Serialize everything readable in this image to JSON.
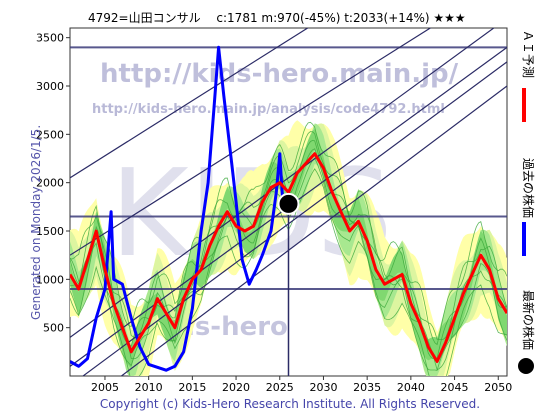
{
  "header": {
    "title": "4792=山田コンサル　 c:1781  m:970(-45%)  t:2033(+14%)  ★★★"
  },
  "side_note": "Generated on Monday 2026/1/5.",
  "footer": "Copyright (c) Kids-Hero Research Institute. All Rights Reserved.",
  "watermark": {
    "big_text": "KIDS",
    "url": "http://kids-hero.main.jp/",
    "analysis_url": "http://kids-hero.main.jp/analysis/code4792.html",
    "lower_text": "kids-hero"
  },
  "legend": [
    {
      "label": "ＡＩ予測",
      "color": "#ff0000"
    },
    {
      "label": "過去の株価",
      "color": "#0000ff"
    },
    {
      "label": "最新の株価",
      "color": "#000000"
    }
  ],
  "chart_data": {
    "type": "line",
    "xlim": [
      2001,
      2051
    ],
    "ylim": [
      0,
      3600
    ],
    "x_ticks": [
      2005,
      2010,
      2015,
      2020,
      2025,
      2030,
      2035,
      2040,
      2045,
      2050
    ],
    "y_ticks": [
      500,
      1000,
      1500,
      2000,
      2500,
      3000,
      3500
    ],
    "horizontal_levels": [
      3400,
      1650,
      900
    ],
    "latest_point": {
      "x": 2026.0,
      "y": 1781
    },
    "series": [
      {
        "name": "過去の株価",
        "color": "#0000ff",
        "points": [
          [
            2001,
            150
          ],
          [
            2002,
            100
          ],
          [
            2003,
            180
          ],
          [
            2004,
            600
          ],
          [
            2005,
            900
          ],
          [
            2005.7,
            1700
          ],
          [
            2006,
            1000
          ],
          [
            2007,
            950
          ],
          [
            2008,
            600
          ],
          [
            2009,
            300
          ],
          [
            2010,
            120
          ],
          [
            2011,
            90
          ],
          [
            2012,
            60
          ],
          [
            2013,
            100
          ],
          [
            2014,
            250
          ],
          [
            2015,
            700
          ],
          [
            2016,
            1500
          ],
          [
            2016.8,
            2000
          ],
          [
            2017.5,
            2800
          ],
          [
            2018,
            3400
          ],
          [
            2018.6,
            2900
          ],
          [
            2019.5,
            2200
          ],
          [
            2020,
            1800
          ],
          [
            2020.7,
            1200
          ],
          [
            2021.5,
            950
          ],
          [
            2022.3,
            1100
          ],
          [
            2023,
            1250
          ],
          [
            2024,
            1500
          ],
          [
            2024.6,
            1900
          ],
          [
            2025,
            2300
          ],
          [
            2025.4,
            1700
          ]
        ]
      },
      {
        "name": "ＡＩ予測",
        "color": "#ff0000",
        "points": [
          [
            2001,
            1050
          ],
          [
            2002,
            900
          ],
          [
            2003,
            1200
          ],
          [
            2004,
            1500
          ],
          [
            2005,
            1100
          ],
          [
            2006,
            750
          ],
          [
            2007,
            500
          ],
          [
            2008,
            250
          ],
          [
            2009,
            400
          ],
          [
            2010,
            550
          ],
          [
            2011,
            800
          ],
          [
            2012,
            650
          ],
          [
            2013,
            500
          ],
          [
            2014,
            800
          ],
          [
            2015,
            1000
          ],
          [
            2016,
            1100
          ],
          [
            2017,
            1350
          ],
          [
            2018,
            1550
          ],
          [
            2019,
            1700
          ],
          [
            2020,
            1550
          ],
          [
            2021,
            1500
          ],
          [
            2022,
            1550
          ],
          [
            2023,
            1800
          ],
          [
            2024,
            1950
          ],
          [
            2025,
            2000
          ],
          [
            2026,
            1900
          ],
          [
            2027,
            2100
          ],
          [
            2028,
            2200
          ],
          [
            2029,
            2300
          ],
          [
            2030,
            2150
          ],
          [
            2031,
            1900
          ],
          [
            2032,
            1700
          ],
          [
            2033,
            1500
          ],
          [
            2034,
            1600
          ],
          [
            2035,
            1400
          ],
          [
            2036,
            1100
          ],
          [
            2037,
            950
          ],
          [
            2038,
            1000
          ],
          [
            2039,
            1050
          ],
          [
            2040,
            750
          ],
          [
            2041,
            550
          ],
          [
            2042,
            300
          ],
          [
            2043,
            150
          ],
          [
            2044,
            350
          ],
          [
            2045,
            600
          ],
          [
            2046,
            850
          ],
          [
            2047,
            1050
          ],
          [
            2048,
            1250
          ],
          [
            2049,
            1100
          ],
          [
            2050,
            800
          ],
          [
            2051,
            650
          ]
        ]
      }
    ]
  }
}
